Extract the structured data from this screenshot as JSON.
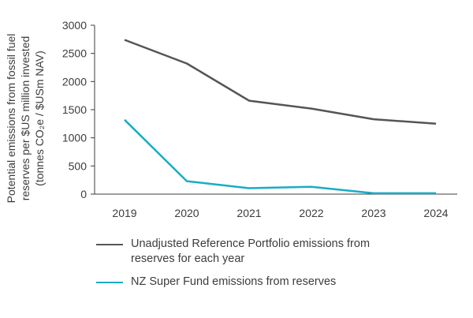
{
  "chart_data": {
    "type": "line",
    "x": [
      "2019",
      "2020",
      "2021",
      "2022",
      "2023",
      "2024"
    ],
    "series": [
      {
        "name": "Unadjusted Reference Portfolio emissions from reserves for each year",
        "color": "#555555",
        "values": [
          2740,
          2320,
          1660,
          1520,
          1330,
          1250
        ]
      },
      {
        "name": "NZ Super Fund emissions from reserves",
        "color": "#1aabc6",
        "values": [
          1320,
          230,
          105,
          130,
          15,
          15
        ]
      }
    ],
    "ylim": [
      0,
      3000
    ],
    "yticks": [
      "0",
      "500",
      "1000",
      "1500",
      "2000",
      "2500",
      "3000"
    ],
    "ylabel_lines": [
      "Potential emissions from fossil fuel",
      "reserves per $US million invested",
      "(tonnes CO₂e / $USm NAV)"
    ],
    "grid": false
  },
  "legend": {
    "items": [
      {
        "label_line1": "Unadjusted Reference Portfolio emissions from",
        "label_line2": "reserves for each year",
        "color": "#555555"
      },
      {
        "label_line1": "NZ Super Fund emissions from reserves",
        "label_line2": "",
        "color": "#1aabc6"
      }
    ]
  }
}
